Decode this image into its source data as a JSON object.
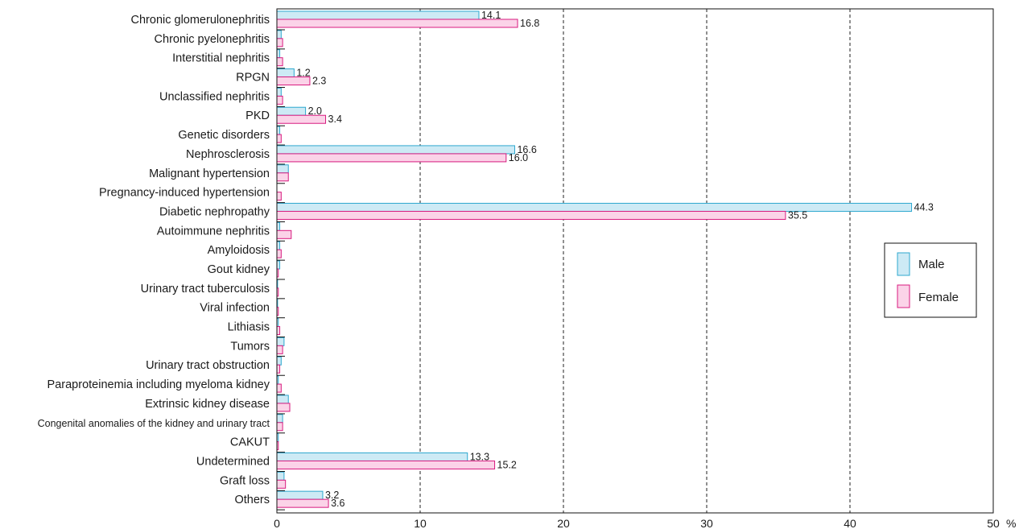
{
  "chart_data": {
    "type": "bar",
    "orientation": "horizontal",
    "categories": [
      "Chronic glomerulonephritis",
      "Chronic pyelonephritis",
      "Interstitial nephritis",
      "RPGN",
      "Unclassified nephritis",
      "PKD",
      "Genetic disorders",
      "Nephrosclerosis",
      "Malignant hypertension",
      "Pregnancy-induced hypertension",
      "Diabetic nephropathy",
      "Autoimmune nephritis",
      "Amyloidosis",
      "Gout kidney",
      "Urinary tract tuberculosis",
      "Viral infection",
      "Lithiasis",
      "Tumors",
      "Urinary tract obstruction",
      "Paraproteinemia including myeloma kidney",
      "Extrinsic kidney disease",
      "Congenital anomalies of the kidney and urinary tract",
      "CAKUT",
      "Undetermined",
      "Graft loss",
      "Others"
    ],
    "series": [
      {
        "name": "Male",
        "values": [
          14.1,
          0.3,
          0.2,
          1.2,
          0.3,
          2.0,
          0.2,
          16.6,
          0.8,
          0.0,
          44.3,
          0.2,
          0.2,
          0.2,
          0.05,
          0.05,
          0.1,
          0.5,
          0.3,
          0.1,
          0.8,
          0.4,
          0.1,
          13.3,
          0.5,
          3.2
        ],
        "labels": [
          "14.1",
          "",
          "",
          "1.2",
          "",
          "2.0",
          "",
          "16.6",
          "",
          "",
          "44.3",
          "",
          "",
          "",
          "",
          "",
          "",
          "",
          "",
          "",
          "",
          "",
          "",
          "13.3",
          "",
          "3.2"
        ]
      },
      {
        "name": "Female",
        "values": [
          16.8,
          0.4,
          0.4,
          2.3,
          0.4,
          3.4,
          0.3,
          16.0,
          0.8,
          0.3,
          35.5,
          1.0,
          0.3,
          0.1,
          0.1,
          0.1,
          0.2,
          0.4,
          0.2,
          0.3,
          0.9,
          0.4,
          0.1,
          15.2,
          0.6,
          3.6
        ],
        "labels": [
          "16.8",
          "",
          "",
          "2.3",
          "",
          "3.4",
          "",
          "16.0",
          "",
          "",
          "35.5",
          "",
          "",
          "",
          "",
          "",
          "",
          "",
          "",
          "",
          "",
          "",
          "",
          "15.2",
          "",
          "3.6"
        ]
      }
    ],
    "x_ticks": [
      "0",
      "10",
      "20",
      "30",
      "40",
      "50"
    ],
    "x_unit": "%",
    "xlim": [
      0,
      50
    ],
    "grid": "vertical dashed",
    "legend_position": "right"
  },
  "colors": {
    "male_fill": "#cdeaf5",
    "male_stroke": "#2ea8cf",
    "female_fill": "#fbd3e8",
    "female_stroke": "#d81b7f"
  }
}
